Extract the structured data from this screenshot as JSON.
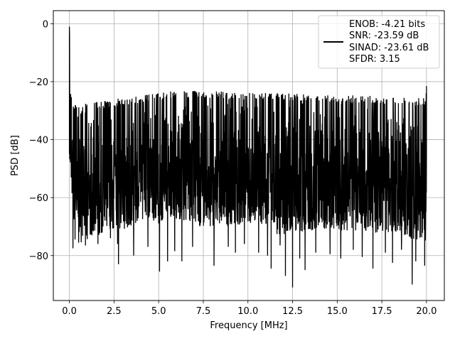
{
  "chart_data": {
    "type": "line",
    "title": "",
    "xlabel": "Frequency [MHz]",
    "ylabel": "PSD [dB]",
    "xlim": [
      -0.9,
      21.0
    ],
    "ylim": [
      -95.5,
      4.5
    ],
    "xticks": [
      0.0,
      2.5,
      5.0,
      7.5,
      10.0,
      12.5,
      15.0,
      17.5,
      20.0
    ],
    "xtick_labels": [
      "0.0",
      "2.5",
      "5.0",
      "7.5",
      "10.0",
      "12.5",
      "15.0",
      "17.5",
      "20.0"
    ],
    "yticks": [
      0,
      -20,
      -40,
      -60,
      -80
    ],
    "ytick_labels": [
      "0",
      "−20",
      "−40",
      "−60",
      "−80"
    ],
    "grid": true,
    "legend_position": "top-right",
    "line_color": "#000000",
    "series": [
      {
        "name": "",
        "legend_lines": [
          "ENOB: -4.21 bits",
          "SNR: -23.59 dB",
          "SINAD: -23.61 dB",
          "SFDR: 3.15"
        ],
        "description": "dense noise floor",
        "upper_envelope": {
          "x": [
            0.0,
            0.05,
            0.2,
            1.0,
            2.0,
            3.0,
            4.0,
            5.0,
            6.0,
            7.0,
            8.0,
            9.0,
            10.0,
            11.0,
            12.0,
            13.0,
            14.0,
            15.0,
            16.0,
            17.0,
            18.0,
            19.0,
            19.9,
            20.0
          ],
          "y": [
            -1.0,
            -22.0,
            -27.5,
            -27.3,
            -26.6,
            -25.6,
            -24.8,
            -23.9,
            -23.1,
            -23.2,
            -23.3,
            -23.5,
            -23.7,
            -23.6,
            -24.0,
            -24.1,
            -24.3,
            -24.5,
            -24.6,
            -24.9,
            -25.4,
            -25.5,
            -25.6,
            -21.5
          ]
        },
        "lower_envelope": {
          "x": [
            0.0,
            0.3,
            1.0,
            2.0,
            3.0,
            4.0,
            5.0,
            6.0,
            7.0,
            8.0,
            9.0,
            10.0,
            11.0,
            12.0,
            13.0,
            14.0,
            15.0,
            16.0,
            17.0,
            18.0,
            19.0,
            20.0
          ],
          "y": [
            -45.0,
            -76.0,
            -75.0,
            -72.0,
            -71.0,
            -69.0,
            -69.0,
            -68.0,
            -70.0,
            -70.0,
            -70.0,
            -70.0,
            -72.0,
            -73.0,
            -72.0,
            -71.0,
            -72.0,
            -72.0,
            -72.0,
            -73.0,
            -74.0,
            -75.0
          ]
        },
        "deep_dips": [
          {
            "x": 0.2,
            "y": -77.5
          },
          {
            "x": 0.9,
            "y": -76.5
          },
          {
            "x": 1.6,
            "y": -76.0
          },
          {
            "x": 2.3,
            "y": -74.0
          },
          {
            "x": 2.7,
            "y": -76.0
          },
          {
            "x": 2.75,
            "y": -83.0
          },
          {
            "x": 3.6,
            "y": -80.0
          },
          {
            "x": 4.4,
            "y": -77.0
          },
          {
            "x": 5.05,
            "y": -85.5
          },
          {
            "x": 5.5,
            "y": -82.0
          },
          {
            "x": 5.9,
            "y": -78.5
          },
          {
            "x": 6.3,
            "y": -82.0
          },
          {
            "x": 6.9,
            "y": -77.0
          },
          {
            "x": 8.1,
            "y": -83.5
          },
          {
            "x": 8.9,
            "y": -77.0
          },
          {
            "x": 9.3,
            "y": -79.0
          },
          {
            "x": 9.8,
            "y": -76.0
          },
          {
            "x": 10.6,
            "y": -79.0
          },
          {
            "x": 11.1,
            "y": -80.0
          },
          {
            "x": 11.3,
            "y": -84.5
          },
          {
            "x": 11.8,
            "y": -76.5
          },
          {
            "x": 12.1,
            "y": -87.0
          },
          {
            "x": 12.5,
            "y": -91.0
          },
          {
            "x": 12.9,
            "y": -81.0
          },
          {
            "x": 13.2,
            "y": -85.0
          },
          {
            "x": 13.8,
            "y": -79.0
          },
          {
            "x": 14.6,
            "y": -79.5
          },
          {
            "x": 15.2,
            "y": -81.0
          },
          {
            "x": 15.9,
            "y": -78.0
          },
          {
            "x": 16.4,
            "y": -80.5
          },
          {
            "x": 17.0,
            "y": -84.5
          },
          {
            "x": 17.7,
            "y": -79.0
          },
          {
            "x": 18.1,
            "y": -82.5
          },
          {
            "x": 18.6,
            "y": -78.0
          },
          {
            "x": 19.2,
            "y": -90.0
          },
          {
            "x": 19.4,
            "y": -82.0
          },
          {
            "x": 19.9,
            "y": -83.5
          }
        ]
      }
    ]
  }
}
